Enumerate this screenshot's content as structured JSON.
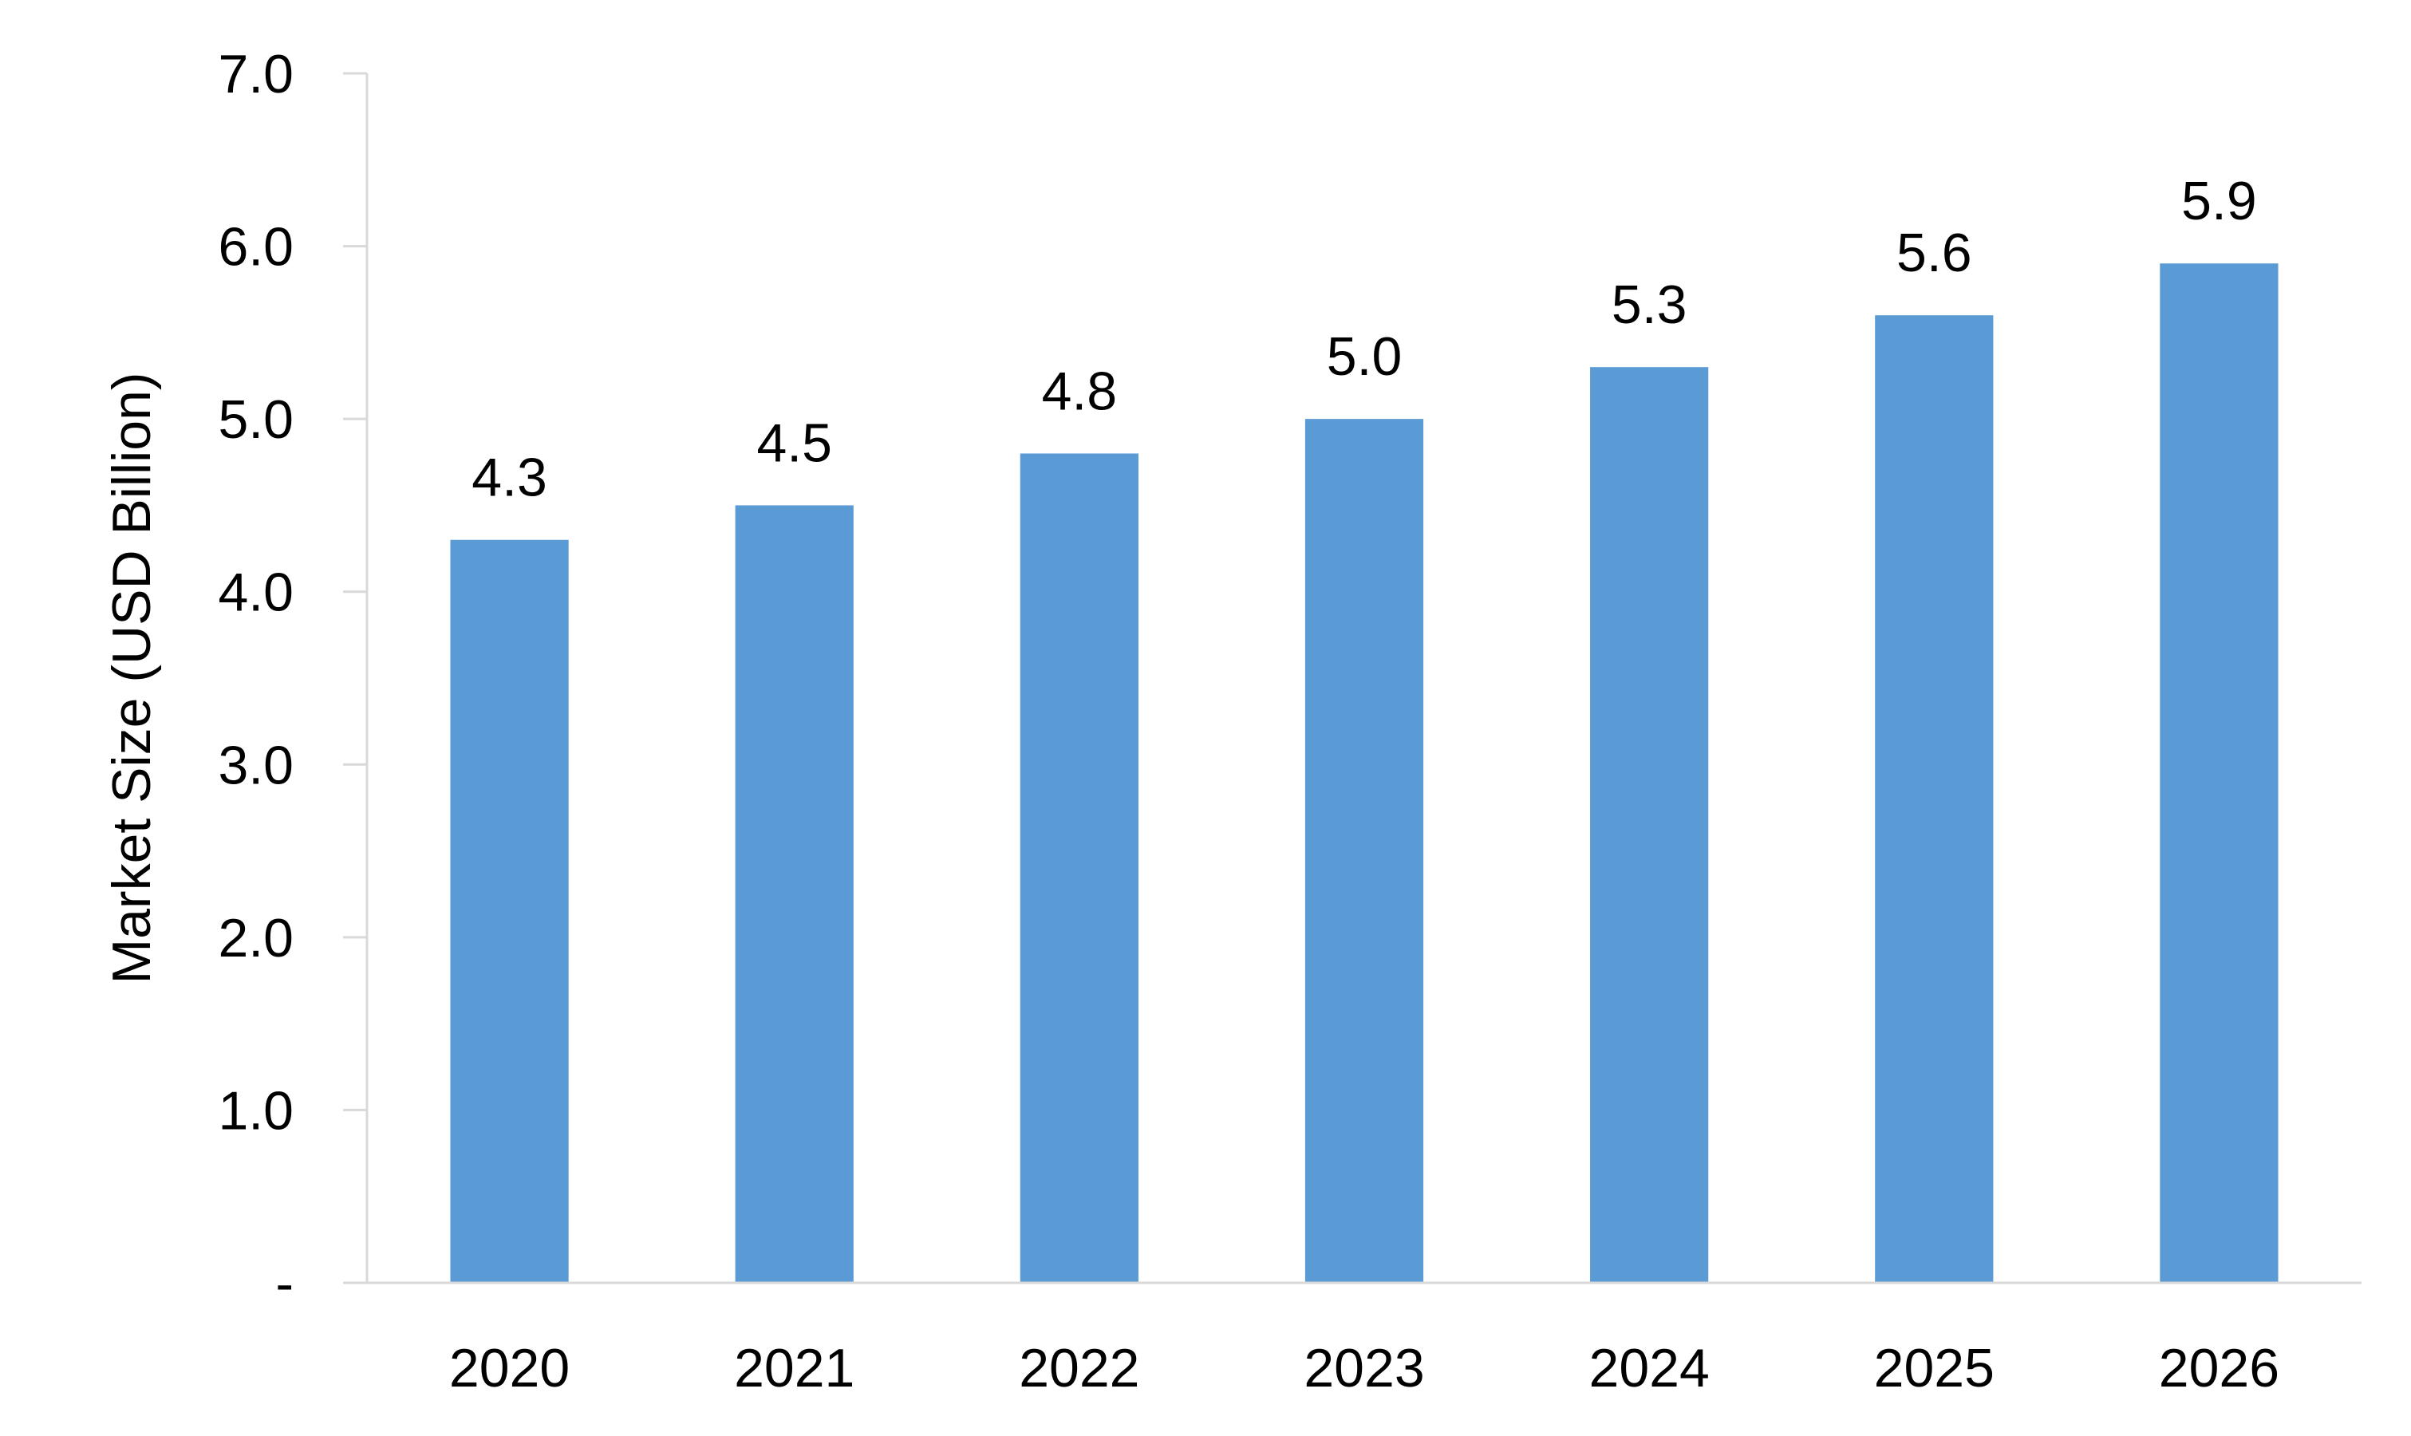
{
  "chart_data": {
    "type": "bar",
    "title": "",
    "xlabel": "",
    "ylabel": "Market Size (USD Billion)",
    "categories": [
      "2020",
      "2021",
      "2022",
      "2023",
      "2024",
      "2025",
      "2026"
    ],
    "values": [
      4.3,
      4.5,
      4.8,
      5.0,
      5.3,
      5.6,
      5.9
    ],
    "data_labels": [
      "4.3",
      "4.5",
      "4.8",
      "5.0",
      "5.3",
      "5.6",
      "5.9"
    ],
    "ylim": [
      0,
      7
    ],
    "yticks": [
      0,
      1,
      2,
      3,
      4,
      5,
      6,
      7
    ],
    "ytick_labels": [
      "-",
      "1.0",
      "2.0",
      "3.0",
      "4.0",
      "5.0",
      "6.0",
      "7.0"
    ],
    "grid": false,
    "legend": "none",
    "bar_color": "#5b9bd5",
    "axis_color": "#d9d9d9"
  }
}
